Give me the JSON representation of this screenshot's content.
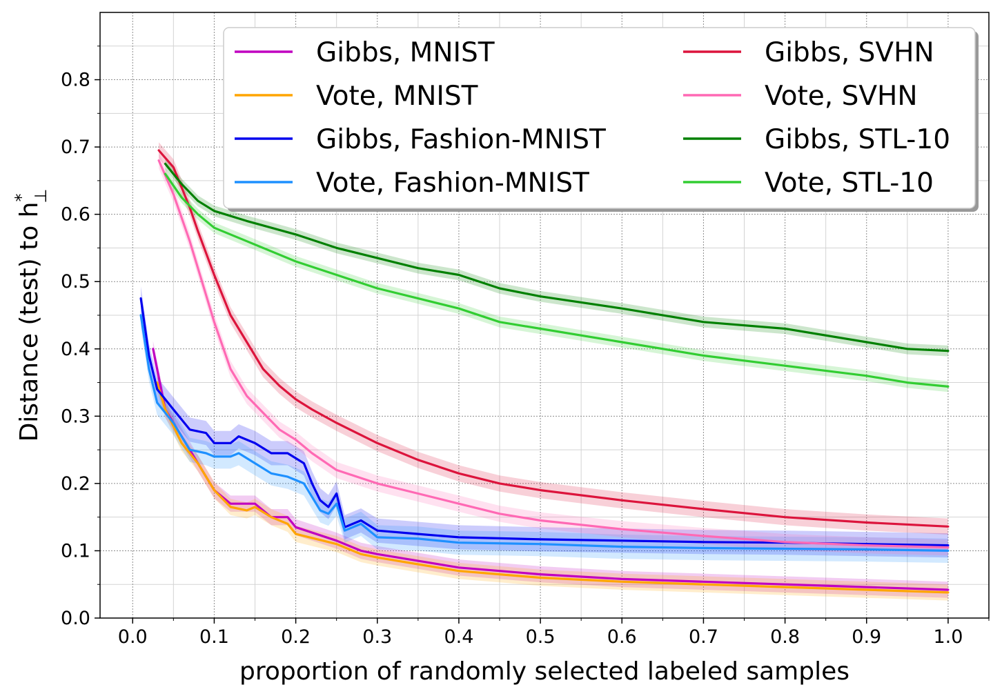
{
  "chart_data": {
    "type": "line",
    "title": "",
    "xlabel": "proportion of randomly selected labeled samples",
    "ylabel": "Distance (test) to h",
    "ylabel_sup": "*",
    "ylabel_sub": "⊥",
    "xlim": [
      -0.04,
      1.05
    ],
    "ylim": [
      0.0,
      0.9
    ],
    "xticks": [
      0.0,
      0.1,
      0.2,
      0.3,
      0.4,
      0.5,
      0.6,
      0.7,
      0.8,
      0.9,
      1.0
    ],
    "xtick_labels": [
      "0.0",
      "0.1",
      "0.2",
      "0.3",
      "0.4",
      "0.5",
      "0.6",
      "0.7",
      "0.8",
      "0.9",
      "1.0"
    ],
    "yticks": [
      0.0,
      0.1,
      0.2,
      0.3,
      0.4,
      0.5,
      0.6,
      0.7,
      0.8
    ],
    "ytick_labels": [
      "0.0",
      "0.1",
      "0.2",
      "0.3",
      "0.4",
      "0.5",
      "0.6",
      "0.7",
      "0.8"
    ],
    "grid": true,
    "minor_grid": true,
    "legend_position": "top-right",
    "legend_columns": 2,
    "series": [
      {
        "name": "Gibbs, MNIST",
        "color": "#c000c0",
        "points": [
          [
            0.025,
            0.4
          ],
          [
            0.04,
            0.31
          ],
          [
            0.06,
            0.27
          ],
          [
            0.08,
            0.23
          ],
          [
            0.09,
            0.21
          ],
          [
            0.1,
            0.19
          ],
          [
            0.12,
            0.17
          ],
          [
            0.14,
            0.17
          ],
          [
            0.15,
            0.17
          ],
          [
            0.17,
            0.15
          ],
          [
            0.19,
            0.15
          ],
          [
            0.2,
            0.135
          ],
          [
            0.25,
            0.115
          ],
          [
            0.28,
            0.1
          ],
          [
            0.3,
            0.095
          ],
          [
            0.35,
            0.085
          ],
          [
            0.4,
            0.075
          ],
          [
            0.45,
            0.07
          ],
          [
            0.5,
            0.065
          ],
          [
            0.6,
            0.058
          ],
          [
            0.7,
            0.054
          ],
          [
            0.8,
            0.05
          ],
          [
            0.9,
            0.046
          ],
          [
            1.0,
            0.042
          ]
        ],
        "band": 0.012
      },
      {
        "name": "Vote, MNIST",
        "color": "#ffa500",
        "points": [
          [
            0.03,
            0.35
          ],
          [
            0.04,
            0.31
          ],
          [
            0.06,
            0.26
          ],
          [
            0.08,
            0.23
          ],
          [
            0.1,
            0.19
          ],
          [
            0.12,
            0.165
          ],
          [
            0.14,
            0.16
          ],
          [
            0.15,
            0.165
          ],
          [
            0.17,
            0.15
          ],
          [
            0.19,
            0.14
          ],
          [
            0.2,
            0.125
          ],
          [
            0.25,
            0.11
          ],
          [
            0.28,
            0.095
          ],
          [
            0.3,
            0.09
          ],
          [
            0.35,
            0.08
          ],
          [
            0.4,
            0.07
          ],
          [
            0.45,
            0.065
          ],
          [
            0.5,
            0.06
          ],
          [
            0.6,
            0.054
          ],
          [
            0.7,
            0.05
          ],
          [
            0.8,
            0.046
          ],
          [
            0.9,
            0.042
          ],
          [
            1.0,
            0.038
          ]
        ],
        "band": 0.012
      },
      {
        "name": "Gibbs, Fashion-MNIST",
        "color": "#0000ee",
        "points": [
          [
            0.01,
            0.475
          ],
          [
            0.02,
            0.39
          ],
          [
            0.03,
            0.34
          ],
          [
            0.05,
            0.31
          ],
          [
            0.07,
            0.28
          ],
          [
            0.09,
            0.275
          ],
          [
            0.1,
            0.26
          ],
          [
            0.12,
            0.26
          ],
          [
            0.13,
            0.27
          ],
          [
            0.15,
            0.26
          ],
          [
            0.17,
            0.245
          ],
          [
            0.19,
            0.245
          ],
          [
            0.21,
            0.23
          ],
          [
            0.22,
            0.2
          ],
          [
            0.23,
            0.175
          ],
          [
            0.24,
            0.165
          ],
          [
            0.25,
            0.185
          ],
          [
            0.26,
            0.135
          ],
          [
            0.27,
            0.14
          ],
          [
            0.28,
            0.145
          ],
          [
            0.3,
            0.13
          ],
          [
            0.35,
            0.125
          ],
          [
            0.4,
            0.12
          ],
          [
            0.5,
            0.117
          ],
          [
            0.6,
            0.115
          ],
          [
            0.7,
            0.113
          ],
          [
            0.8,
            0.112
          ],
          [
            0.9,
            0.11
          ],
          [
            1.0,
            0.108
          ]
        ],
        "band": 0.018
      },
      {
        "name": "Vote, Fashion-MNIST",
        "color": "#1e90ff",
        "points": [
          [
            0.01,
            0.45
          ],
          [
            0.02,
            0.37
          ],
          [
            0.03,
            0.32
          ],
          [
            0.05,
            0.29
          ],
          [
            0.07,
            0.25
          ],
          [
            0.09,
            0.245
          ],
          [
            0.1,
            0.24
          ],
          [
            0.12,
            0.24
          ],
          [
            0.13,
            0.245
          ],
          [
            0.15,
            0.23
          ],
          [
            0.17,
            0.215
          ],
          [
            0.19,
            0.21
          ],
          [
            0.21,
            0.2
          ],
          [
            0.22,
            0.18
          ],
          [
            0.23,
            0.16
          ],
          [
            0.24,
            0.155
          ],
          [
            0.25,
            0.17
          ],
          [
            0.26,
            0.13
          ],
          [
            0.27,
            0.135
          ],
          [
            0.28,
            0.14
          ],
          [
            0.3,
            0.12
          ],
          [
            0.35,
            0.118
          ],
          [
            0.4,
            0.112
          ],
          [
            0.5,
            0.11
          ],
          [
            0.6,
            0.106
          ],
          [
            0.7,
            0.104
          ],
          [
            0.8,
            0.103
          ],
          [
            0.9,
            0.102
          ],
          [
            1.0,
            0.1
          ]
        ],
        "band": 0.018
      },
      {
        "name": "Gibbs, SVHN",
        "color": "#dc143c",
        "points": [
          [
            0.032,
            0.695
          ],
          [
            0.05,
            0.67
          ],
          [
            0.07,
            0.61
          ],
          [
            0.08,
            0.575
          ],
          [
            0.1,
            0.51
          ],
          [
            0.12,
            0.45
          ],
          [
            0.14,
            0.41
          ],
          [
            0.16,
            0.37
          ],
          [
            0.18,
            0.345
          ],
          [
            0.2,
            0.325
          ],
          [
            0.22,
            0.31
          ],
          [
            0.25,
            0.29
          ],
          [
            0.3,
            0.26
          ],
          [
            0.35,
            0.235
          ],
          [
            0.4,
            0.215
          ],
          [
            0.45,
            0.2
          ],
          [
            0.5,
            0.19
          ],
          [
            0.6,
            0.175
          ],
          [
            0.7,
            0.162
          ],
          [
            0.8,
            0.15
          ],
          [
            0.9,
            0.142
          ],
          [
            1.0,
            0.136
          ]
        ],
        "band": 0.012
      },
      {
        "name": "Vote, SVHN",
        "color": "#ff69b4",
        "points": [
          [
            0.032,
            0.68
          ],
          [
            0.05,
            0.63
          ],
          [
            0.07,
            0.56
          ],
          [
            0.09,
            0.48
          ],
          [
            0.1,
            0.44
          ],
          [
            0.12,
            0.37
          ],
          [
            0.14,
            0.33
          ],
          [
            0.16,
            0.305
          ],
          [
            0.18,
            0.28
          ],
          [
            0.2,
            0.265
          ],
          [
            0.22,
            0.245
          ],
          [
            0.25,
            0.22
          ],
          [
            0.3,
            0.2
          ],
          [
            0.35,
            0.185
          ],
          [
            0.4,
            0.17
          ],
          [
            0.45,
            0.155
          ],
          [
            0.5,
            0.145
          ],
          [
            0.6,
            0.132
          ],
          [
            0.7,
            0.122
          ],
          [
            0.8,
            0.113
          ],
          [
            0.9,
            0.108
          ],
          [
            1.0,
            0.105
          ]
        ],
        "band": 0.012
      },
      {
        "name": "Gibbs, STL-10",
        "color": "#008000",
        "points": [
          [
            0.04,
            0.675
          ],
          [
            0.06,
            0.645
          ],
          [
            0.08,
            0.62
          ],
          [
            0.1,
            0.605
          ],
          [
            0.14,
            0.59
          ],
          [
            0.2,
            0.57
          ],
          [
            0.25,
            0.55
          ],
          [
            0.3,
            0.535
          ],
          [
            0.35,
            0.52
          ],
          [
            0.4,
            0.51
          ],
          [
            0.45,
            0.49
          ],
          [
            0.5,
            0.478
          ],
          [
            0.6,
            0.46
          ],
          [
            0.7,
            0.44
          ],
          [
            0.8,
            0.43
          ],
          [
            0.9,
            0.41
          ],
          [
            0.95,
            0.4
          ],
          [
            1.0,
            0.397
          ]
        ],
        "band": 0.008
      },
      {
        "name": "Vote, STL-10",
        "color": "#32cd32",
        "points": [
          [
            0.04,
            0.66
          ],
          [
            0.06,
            0.625
          ],
          [
            0.08,
            0.6
          ],
          [
            0.1,
            0.58
          ],
          [
            0.14,
            0.56
          ],
          [
            0.2,
            0.53
          ],
          [
            0.25,
            0.51
          ],
          [
            0.3,
            0.49
          ],
          [
            0.35,
            0.475
          ],
          [
            0.4,
            0.46
          ],
          [
            0.45,
            0.44
          ],
          [
            0.5,
            0.43
          ],
          [
            0.6,
            0.41
          ],
          [
            0.7,
            0.39
          ],
          [
            0.8,
            0.375
          ],
          [
            0.9,
            0.36
          ],
          [
            0.95,
            0.35
          ],
          [
            1.0,
            0.344
          ]
        ],
        "band": 0.008
      }
    ]
  }
}
